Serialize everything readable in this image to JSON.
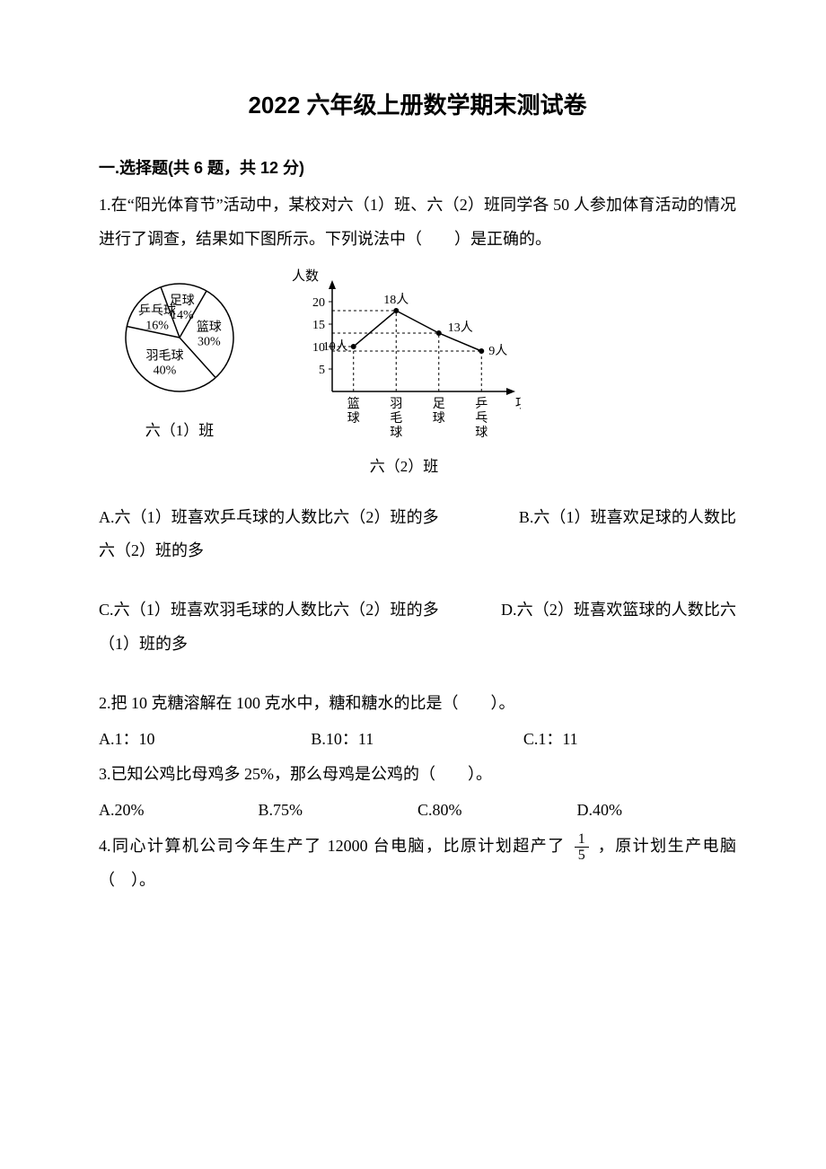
{
  "title": "2022 六年级上册数学期末测试卷",
  "section1_header": "一.选择题(共 6 题，共 12 分)",
  "q1": {
    "stem": "1.在“阳光体育节”活动中，某校对六（1）班、六（2）班同学各 50 人参加体育活动的情况进行了调查，结果如下图所示。下列说法中（　　）是正确的。",
    "pie": {
      "caption": "六（1）班",
      "slices": [
        {
          "label": "篮球",
          "pct_label": "30%",
          "value": 30
        },
        {
          "label": "羽毛球",
          "pct_label": "40%",
          "value": 40
        },
        {
          "label": "乒乓球",
          "pct_label": "16%",
          "value": 16
        },
        {
          "label": "足球",
          "pct_label": "14%",
          "value": 14
        }
      ],
      "line_color": "#000000",
      "bg": "#ffffff",
      "radius": 60
    },
    "line": {
      "caption": "六（2）班",
      "y_label": "人数",
      "x_label": "项目",
      "categories": [
        "篮球",
        "羽毛球",
        "足球",
        "乒乓球"
      ],
      "values": [
        10,
        18,
        13,
        9
      ],
      "value_labels": [
        "10人",
        "18人",
        "13人",
        "9人"
      ],
      "yticks": [
        5,
        10,
        15,
        20
      ],
      "ylim": [
        0,
        22
      ],
      "line_color": "#000000",
      "grid_color": "#000000",
      "bg": "#ffffff"
    },
    "options": {
      "A": "A.六（1）班喜欢乒乓球的人数比六（2）班的多",
      "B": "B.六（1）班喜欢足球的人数比六（2）班的多",
      "C": "C.六（1）班喜欢羽毛球的人数比六（2）班的多",
      "D": "D.六（2）班喜欢篮球的人数比六（1）班的多"
    }
  },
  "q2": {
    "stem": "2.把 10 克糖溶解在 100 克水中，糖和糖水的比是（　　）。",
    "options": {
      "A": "A.1：10",
      "B": "B.10：11",
      "C": "C.1：11"
    }
  },
  "q3": {
    "stem": "3.已知公鸡比母鸡多 25%，那么母鸡是公鸡的（　　）。",
    "options": {
      "A": "A.20%",
      "B": "B.75%",
      "C": "C.80%",
      "D": "D.40%"
    }
  },
  "q4": {
    "stem_pre": "4.同心计算机公司今年生产了 12000 台电脑，比原计划超产了",
    "frac_num": "1",
    "frac_den": "5",
    "stem_post": "，原计划生产电脑（　）。"
  }
}
